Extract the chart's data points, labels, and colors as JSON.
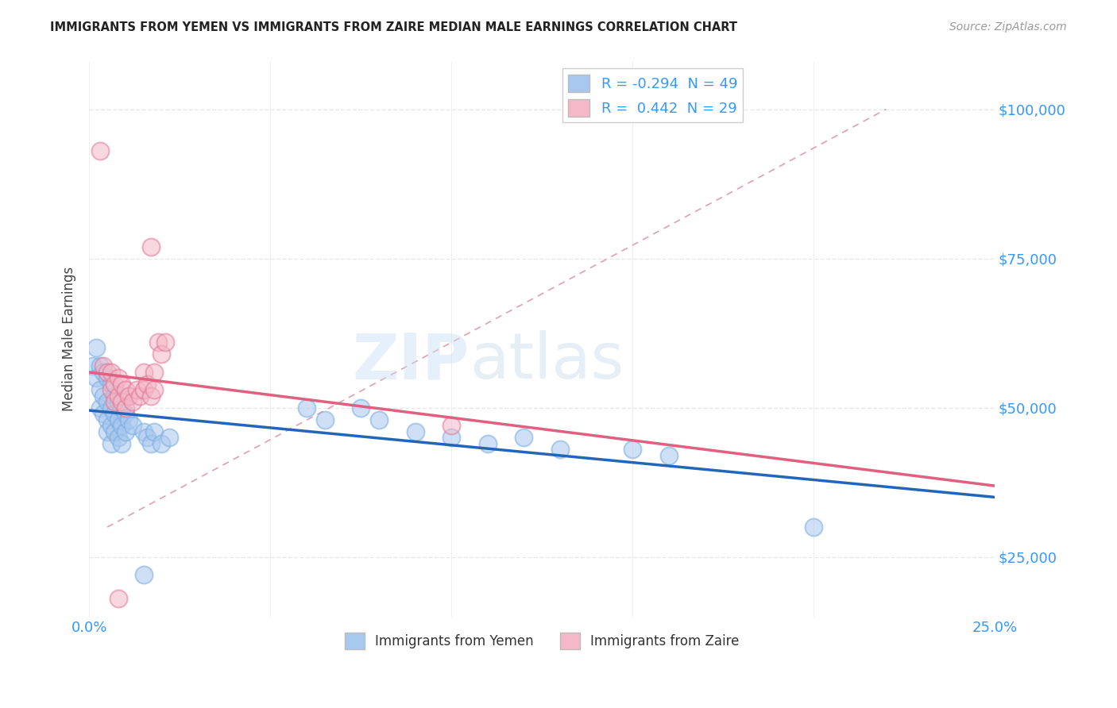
{
  "title": "IMMIGRANTS FROM YEMEN VS IMMIGRANTS FROM ZAIRE MEDIAN MALE EARNINGS CORRELATION CHART",
  "source": "Source: ZipAtlas.com",
  "ylabel": "Median Male Earnings",
  "xlim": [
    0.0,
    0.25
  ],
  "ylim": [
    15000,
    108000
  ],
  "yticks": [
    25000,
    50000,
    75000,
    100000
  ],
  "yticklabels": [
    "$25,000",
    "$50,000",
    "$75,000",
    "$100,000"
  ],
  "xtick_positions": [
    0.0,
    0.05,
    0.1,
    0.15,
    0.2,
    0.25
  ],
  "xticklabels": [
    "0.0%",
    "",
    "",
    "",
    "",
    "25.0%"
  ],
  "legend_entries": [
    {
      "label": "R = -0.294  N = 49",
      "color": "#a8c8f0"
    },
    {
      "label": "R =  0.442  N = 29",
      "color": "#f4b8c8"
    }
  ],
  "legend_bottom": [
    {
      "label": "Immigrants from Yemen",
      "color": "#a8c8f0"
    },
    {
      "label": "Immigrants from Zaire",
      "color": "#f4b8c8"
    }
  ],
  "watermark_zip": "ZIP",
  "watermark_atlas": "atlas",
  "blue_color": "#a8c8f0",
  "blue_edge_color": "#7aacdc",
  "pink_color": "#f4b8c8",
  "pink_edge_color": "#e07898",
  "blue_line_color": "#2266bb",
  "pink_line_color": "#e06080",
  "dash_line_color": "#e0a0b0",
  "background_color": "#ffffff",
  "grid_color": "#e8e8e8",
  "title_color": "#222222",
  "axis_label_color": "#444444",
  "tick_label_color": "#3399ff",
  "source_color": "#999999",
  "blue_scatter": [
    [
      0.001,
      57000
    ],
    [
      0.002,
      60000
    ],
    [
      0.002,
      55000
    ],
    [
      0.003,
      57000
    ],
    [
      0.003,
      53000
    ],
    [
      0.003,
      50000
    ],
    [
      0.004,
      56000
    ],
    [
      0.004,
      52000
    ],
    [
      0.004,
      49000
    ],
    [
      0.005,
      55000
    ],
    [
      0.005,
      51000
    ],
    [
      0.005,
      48000
    ],
    [
      0.005,
      46000
    ],
    [
      0.006,
      54000
    ],
    [
      0.006,
      50000
    ],
    [
      0.006,
      47000
    ],
    [
      0.006,
      44000
    ],
    [
      0.007,
      52000
    ],
    [
      0.007,
      49000
    ],
    [
      0.007,
      46000
    ],
    [
      0.008,
      51000
    ],
    [
      0.008,
      48000
    ],
    [
      0.008,
      45000
    ],
    [
      0.009,
      50000
    ],
    [
      0.009,
      47000
    ],
    [
      0.009,
      44000
    ],
    [
      0.01,
      49000
    ],
    [
      0.01,
      46000
    ],
    [
      0.011,
      48000
    ],
    [
      0.012,
      47000
    ],
    [
      0.015,
      46000
    ],
    [
      0.016,
      45000
    ],
    [
      0.017,
      44000
    ],
    [
      0.018,
      46000
    ],
    [
      0.02,
      44000
    ],
    [
      0.022,
      45000
    ],
    [
      0.06,
      50000
    ],
    [
      0.065,
      48000
    ],
    [
      0.075,
      50000
    ],
    [
      0.08,
      48000
    ],
    [
      0.09,
      46000
    ],
    [
      0.1,
      45000
    ],
    [
      0.11,
      44000
    ],
    [
      0.12,
      45000
    ],
    [
      0.13,
      43000
    ],
    [
      0.15,
      43000
    ],
    [
      0.16,
      42000
    ],
    [
      0.015,
      22000
    ],
    [
      0.2,
      30000
    ]
  ],
  "pink_scatter": [
    [
      0.003,
      93000
    ],
    [
      0.017,
      77000
    ],
    [
      0.004,
      57000
    ],
    [
      0.005,
      56000
    ],
    [
      0.006,
      56000
    ],
    [
      0.006,
      53000
    ],
    [
      0.007,
      54000
    ],
    [
      0.007,
      51000
    ],
    [
      0.008,
      55000
    ],
    [
      0.008,
      52000
    ],
    [
      0.009,
      54000
    ],
    [
      0.009,
      51000
    ],
    [
      0.01,
      53000
    ],
    [
      0.01,
      50000
    ],
    [
      0.011,
      52000
    ],
    [
      0.012,
      51000
    ],
    [
      0.013,
      53000
    ],
    [
      0.014,
      52000
    ],
    [
      0.015,
      56000
    ],
    [
      0.015,
      53000
    ],
    [
      0.016,
      54000
    ],
    [
      0.017,
      52000
    ],
    [
      0.018,
      56000
    ],
    [
      0.018,
      53000
    ],
    [
      0.019,
      61000
    ],
    [
      0.02,
      59000
    ],
    [
      0.021,
      61000
    ],
    [
      0.1,
      47000
    ],
    [
      0.008,
      18000
    ]
  ]
}
